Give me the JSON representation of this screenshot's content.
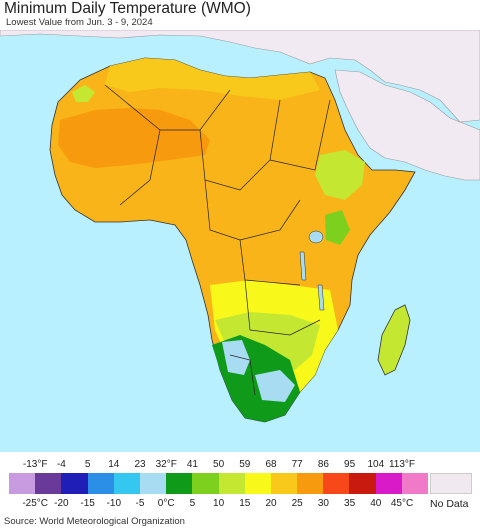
{
  "header": {
    "title": "Minimum Daily Temperature (WMO)",
    "subtitle": "Lowest Value from Jun. 3 - 9, 2024"
  },
  "legend": {
    "fahrenheit_ticks": [
      "-13°F",
      "-4",
      "5",
      "14",
      "23",
      "32°F",
      "41",
      "50",
      "59",
      "68",
      "77",
      "86",
      "95",
      "104",
      "113°F"
    ],
    "celsius_ticks": [
      "-25°C",
      "-20",
      "-15",
      "-10",
      "-5",
      "0°C",
      "5",
      "10",
      "15",
      "20",
      "25",
      "30",
      "35",
      "40",
      "45°C"
    ],
    "colors": [
      "#c89be0",
      "#6a3a9a",
      "#1f1fb8",
      "#2b8fe8",
      "#34c8f0",
      "#a8dcf2",
      "#0f9a1a",
      "#7ed01e",
      "#c4e832",
      "#f8f81a",
      "#f8c81a",
      "#f89a0e",
      "#f8481a",
      "#c81a0e",
      "#d81ac8",
      "#f07ac8"
    ],
    "no_data_label": "No Data",
    "no_data_color": "#f0eaf0"
  },
  "map": {
    "ocean_color": "#b8f0ff",
    "outside_color": "#f2eaf2"
  },
  "footer": {
    "source": "Source: World Meteorological Organization"
  }
}
